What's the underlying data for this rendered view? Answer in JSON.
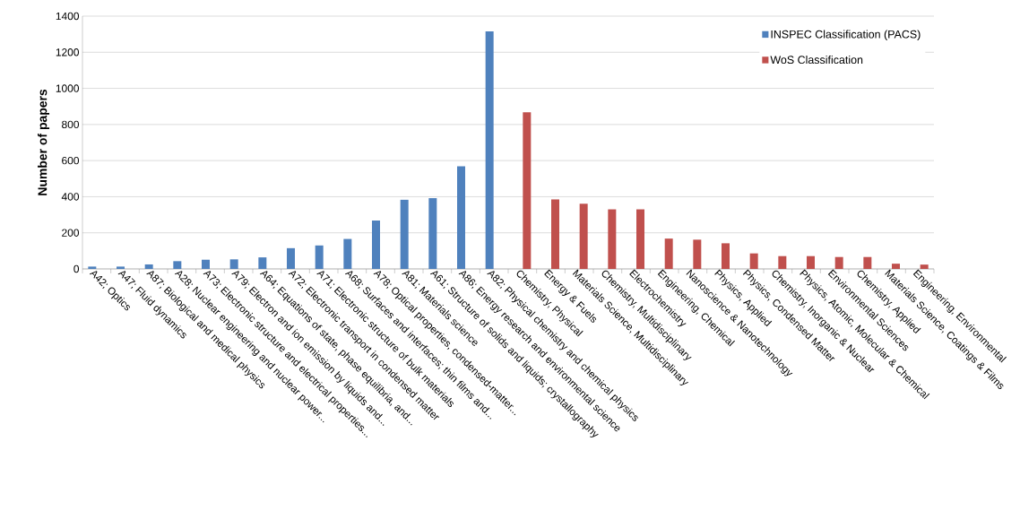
{
  "chart_data": {
    "type": "bar",
    "ylabel": "Number of papers",
    "categories": [
      "A42; Optics",
      "A47; Fluid dynamics",
      "A87; Biological and medical physics",
      "A28; Nuclear engineering and nuclear power...",
      "A73; Electronic structure and electrical properties...",
      "A79; Electron and ion emission by liquids and...",
      "A64; Equations of state, phase equilibria, and...",
      "A72; Electronic transport in condensed matter",
      "A71; Electronic structure of bulk materials",
      "A68; Surfaces and interfaces; thin films and...",
      "A78; Optical properties, condensed-matter...",
      "A81; Materials science",
      "A61; Structure of solids and liquids; crystallography",
      "A86; Energy research and environmental science",
      "A82; Physical chemistry and chemical physics",
      "Chemistry, Physical",
      "Energy & Fuels",
      "Materials Science, Multidisciplinary",
      "Chemistry, Multidisciplinary",
      "Electrochemistry",
      "Engineering, Chemical",
      "Nanoscience & Nanotechnology",
      "Physics, Applied",
      "Physics, Condensed Matter",
      "Chemistry, Inorganic & Nuclear",
      "Physics, Atomic, Molecular & Chemical",
      "Environmental Sciences",
      "Chemistry, Applied",
      "Materials Science, Coatings & Films",
      "Engineering, Environmental"
    ],
    "series": [
      {
        "name": "INSPEC Classification (PACS)",
        "color": "#4f81bd",
        "values": [
          13,
          13,
          25,
          43,
          51,
          53,
          64,
          115,
          130,
          166,
          268,
          383,
          392,
          569,
          1316,
          null,
          null,
          null,
          null,
          null,
          null,
          null,
          null,
          null,
          null,
          null,
          null,
          null,
          null,
          null
        ]
      },
      {
        "name": "WoS Classification",
        "color": "#c0504d",
        "values": [
          null,
          null,
          null,
          null,
          null,
          null,
          null,
          null,
          null,
          null,
          null,
          null,
          null,
          null,
          null,
          867,
          385,
          361,
          330,
          330,
          168,
          162,
          142,
          86,
          71,
          71,
          66,
          66,
          29,
          24
        ]
      }
    ],
    "ylim": [
      0,
      1400
    ],
    "yticks": [
      0,
      200,
      400,
      600,
      800,
      1000,
      1200,
      1400
    ],
    "grid": "y",
    "legend": "top right"
  }
}
